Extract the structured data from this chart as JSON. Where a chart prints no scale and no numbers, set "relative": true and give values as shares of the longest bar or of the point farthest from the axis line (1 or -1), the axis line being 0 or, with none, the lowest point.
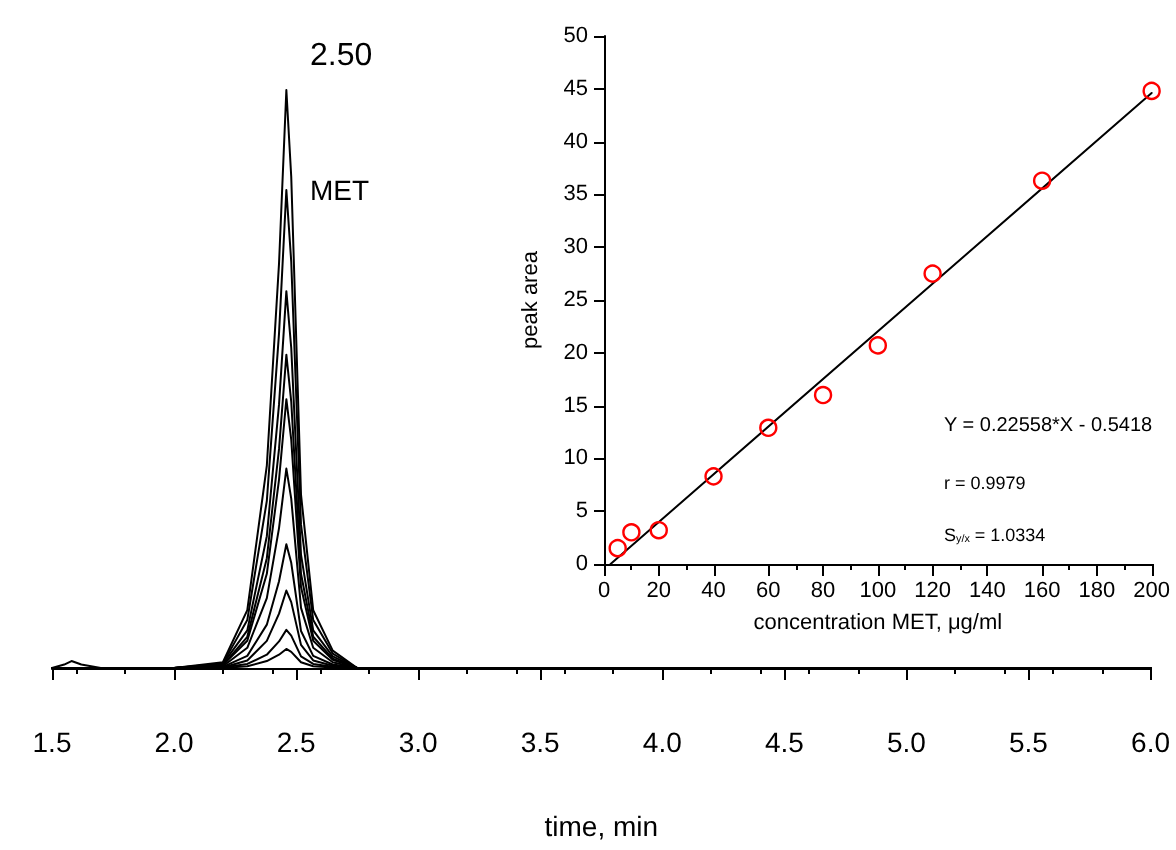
{
  "chart_data": [
    {
      "type": "line",
      "xlabel": "time, min",
      "relative": true,
      "grid": false,
      "marker": "none",
      "line_style": "solid",
      "annotations": [
        "2.50",
        "MET"
      ],
      "xlim": [
        1.5,
        6.0
      ],
      "xticks": [
        1.5,
        {
          "value": 2,
          "label": "2.0"
        },
        2.5,
        {
          "value": 3,
          "label": "3.0"
        },
        3.5,
        {
          "value": 4,
          "label": "4.0"
        },
        4.5,
        {
          "value": 5,
          "label": "5.0"
        },
        5.5,
        {
          "value": 6,
          "label": "6.0"
        }
      ],
      "x": [
        1.5,
        1.55,
        1.58,
        1.62,
        1.7,
        2.0,
        2.2,
        2.3,
        2.38,
        2.43,
        2.46,
        2.48,
        2.52,
        2.57,
        2.65,
        2.75,
        3.0,
        6.0
      ],
      "series": [
        {
          "color": "#000000",
          "values": [
            0,
            0.006,
            0.012,
            0.006,
            0,
            0,
            0.01,
            0.1,
            0.35,
            0.7,
            1,
            0.85,
            0.3,
            0.1,
            0.03,
            0,
            0,
            0
          ]
        },
        {
          "color": "#000000",
          "values": [
            0,
            0,
            0,
            0,
            0,
            0,
            0.008,
            0.083,
            0.289,
            0.579,
            0.827,
            0.703,
            0.248,
            0.083,
            0.025,
            0,
            0,
            0
          ]
        },
        {
          "color": "#000000",
          "values": [
            0,
            0,
            0,
            0,
            0,
            0,
            0.007,
            0.065,
            0.228,
            0.456,
            0.652,
            0.554,
            0.196,
            0.065,
            0.02,
            0,
            0,
            0
          ]
        },
        {
          "color": "#000000",
          "values": [
            0,
            0,
            0,
            0,
            0,
            0,
            0.005,
            0.054,
            0.19,
            0.379,
            0.542,
            0.461,
            0.163,
            0.054,
            0.016,
            0,
            0,
            0
          ]
        },
        {
          "color": "#000000",
          "values": [
            0,
            0,
            0,
            0,
            0,
            0,
            0.005,
            0.047,
            0.163,
            0.326,
            0.465,
            0.395,
            0.14,
            0.047,
            0.014,
            0,
            0,
            0
          ]
        },
        {
          "color": "#000000",
          "values": [
            0,
            0,
            0,
            0,
            0,
            0,
            0.003,
            0.035,
            0.121,
            0.242,
            0.345,
            0.293,
            0.104,
            0.035,
            0.01,
            0,
            0,
            0
          ]
        },
        {
          "color": "#000000",
          "values": [
            0,
            0,
            0,
            0,
            0,
            0,
            0.002,
            0.021,
            0.075,
            0.15,
            0.214,
            0.182,
            0.064,
            0.021,
            0.006,
            0,
            0,
            0
          ]
        },
        {
          "color": "#000000",
          "values": [
            0,
            0,
            0,
            0,
            0,
            0,
            0.001,
            0.013,
            0.047,
            0.094,
            0.134,
            0.114,
            0.04,
            0.013,
            0.004,
            0,
            0,
            0
          ]
        },
        {
          "color": "#000000",
          "values": [
            0,
            0,
            0,
            0,
            0,
            0,
            0.001,
            0.007,
            0.023,
            0.046,
            0.066,
            0.056,
            0.02,
            0.007,
            0.002,
            0,
            0,
            0
          ]
        },
        {
          "color": "#000000",
          "values": [
            0,
            0,
            0,
            0,
            0,
            0,
            0,
            0.003,
            0.012,
            0.023,
            0.033,
            0.028,
            0.01,
            0.003,
            0.001,
            0,
            0,
            0
          ]
        }
      ]
    },
    {
      "type": "scatter",
      "xlabel": "concentration MET, μg/ml",
      "ylabel": "peak area",
      "grid": false,
      "annotations": [
        "Y = 0.22558*X - 0.5418",
        "r = 0.9979",
        "S$_{y/x}$ = 1.0334"
      ],
      "xlim": [
        0,
        200
      ],
      "xticks": [
        0,
        20,
        40,
        60,
        80,
        100,
        120,
        140,
        160,
        180,
        200
      ],
      "ylim": [
        0,
        50
      ],
      "yticks": [
        0,
        5,
        10,
        15,
        20,
        25,
        30,
        35,
        40,
        45,
        50
      ],
      "series": [
        {
          "type": "scatter",
          "marker": "circle",
          "color": "#ff0000",
          "x": [
            5,
            10,
            20,
            40,
            60,
            80,
            100,
            120,
            160,
            200
          ],
          "values": [
            1.5,
            3.0,
            3.2,
            8.3,
            12.9,
            16.0,
            20.7,
            27.5,
            36.3,
            44.8
          ]
        },
        {
          "type": "line",
          "marker": "none",
          "line_style": "solid",
          "color": "#000000",
          "x": [
            2.4,
            200
          ],
          "values": [
            0,
            44.6
          ]
        }
      ]
    }
  ]
}
